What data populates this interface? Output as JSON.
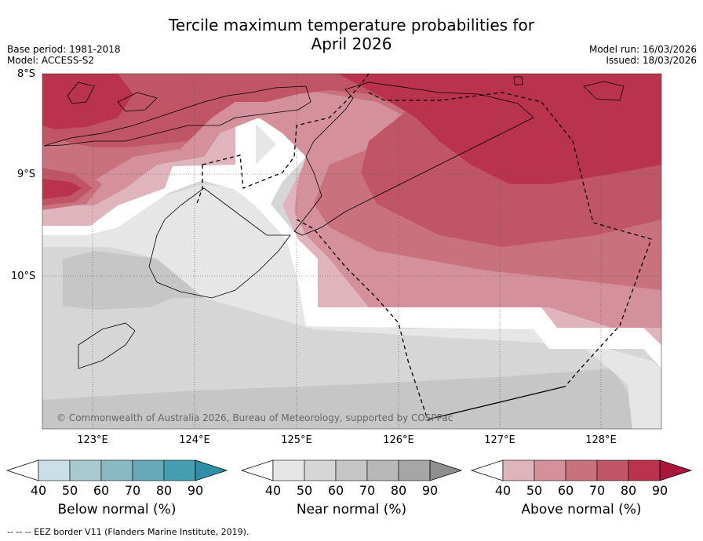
{
  "title_line1": "Tercile maximum temperature probabilities for",
  "title_line2": "April 2026",
  "base_period": "Base period: 1981-2018",
  "model": "Model: ACCESS-S2",
  "model_run": "Model run: 16/03/2026",
  "issued": "Issued: 18/03/2026",
  "lat_labels": [
    "8°S",
    "9°S",
    "10°S"
  ],
  "lon_labels": [
    "123°E",
    "124°E",
    "125°E",
    "126°E",
    "127°E",
    "128°E"
  ],
  "copyright": "© Commonwealth of Australia 2026, Bureau of Meteorology, supported by COSPPac",
  "colorbars": [
    {
      "title": "Below normal (%)",
      "ticks": [
        "40",
        "50",
        "60",
        "70",
        "80",
        "90"
      ],
      "colors": [
        "#ffffff",
        "#c8e0e6",
        "#a8c9cf",
        "#88b8c2",
        "#67a9b6",
        "#459fb0",
        "#2f8fa6"
      ]
    },
    {
      "title": "Near normal (%)",
      "ticks": [
        "40",
        "50",
        "60",
        "70",
        "80",
        "90"
      ],
      "colors": [
        "#ffffff",
        "#e6e6e6",
        "#d6d6d6",
        "#c6c6c6",
        "#b8b8b8",
        "#a6a6a6",
        "#8f8f8f"
      ]
    },
    {
      "title": "Above normal (%)",
      "ticks": [
        "40",
        "50",
        "60",
        "70",
        "80",
        "90"
      ],
      "colors": [
        "#ffffff",
        "#e0b4bc",
        "#d4909b",
        "#c9717d",
        "#c05566",
        "#b8334b",
        "#a8163a"
      ]
    }
  ],
  "footnote": "--  --  -- EEZ border V11 (Flanders Marine Institute, 2019)."
}
